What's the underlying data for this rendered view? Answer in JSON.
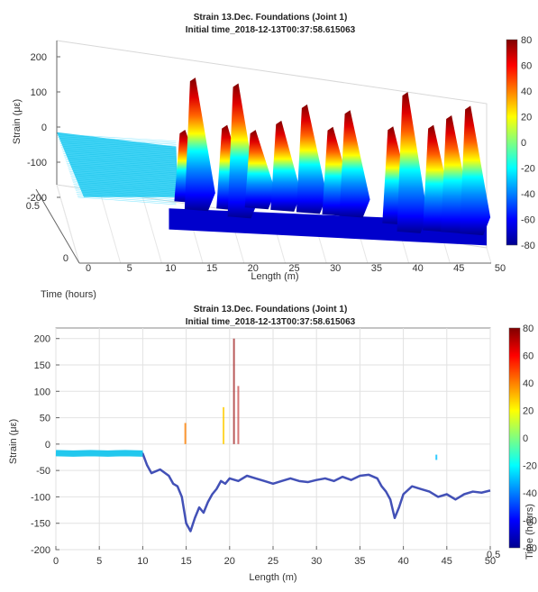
{
  "colors": {
    "colormap": [
      "#00008f",
      "#0000ff",
      "#0080ff",
      "#00ffff",
      "#80ff80",
      "#ffff00",
      "#ff8000",
      "#ff0000",
      "#800000"
    ],
    "baseline_trace": "#22c8ee",
    "noisy_trace": "#2233aa"
  },
  "chart_data": [
    {
      "type": "surface3d",
      "title": "Strain 13.Dec. Foundations (Joint 1)",
      "subtitle": "Initial time_2018-12-13T00:37:58.615063",
      "xlabel": "Length (m)",
      "ylabel": "Time (hours)",
      "zlabel": "Strain (με)",
      "xlim": [
        0,
        50
      ],
      "ylim": [
        0,
        0.5
      ],
      "zlim": [
        -250,
        200
      ],
      "x_ticks": [
        "0",
        "5",
        "10",
        "15",
        "20",
        "25",
        "30",
        "35",
        "40",
        "45",
        "50"
      ],
      "y_ticks": [
        "0",
        "0.5"
      ],
      "z_ticks": [
        "200",
        "100",
        "0",
        "-100",
        "-200"
      ],
      "colorbar": {
        "range": [
          -80,
          80
        ],
        "ticks": [
          "80",
          "60",
          "40",
          "20",
          "0",
          "-20",
          "-40",
          "-60",
          "-80"
        ]
      },
      "baseline": {
        "x_range": [
          0,
          12
        ],
        "strain": -25
      },
      "ridges": [
        {
          "x": 14.3,
          "strain_peak": 0,
          "strain_floor": -160
        },
        {
          "x": 15.5,
          "strain_peak": 150,
          "strain_floor": -180
        },
        {
          "x": 19.2,
          "strain_peak": 20,
          "strain_floor": -170
        },
        {
          "x": 20.5,
          "strain_peak": 140,
          "strain_floor": -190
        },
        {
          "x": 22.5,
          "strain_peak": 10,
          "strain_floor": -160
        },
        {
          "x": 25.5,
          "strain_peak": 40,
          "strain_floor": -160
        },
        {
          "x": 28.5,
          "strain_peak": 90,
          "strain_floor": -160
        },
        {
          "x": 31.5,
          "strain_peak": 30,
          "strain_floor": -160
        },
        {
          "x": 33.5,
          "strain_peak": 80,
          "strain_floor": -160
        },
        {
          "x": 38.5,
          "strain_peak": 40,
          "strain_floor": -170
        },
        {
          "x": 40.2,
          "strain_peak": 140,
          "strain_floor": -190
        },
        {
          "x": 43.2,
          "strain_peak": 50,
          "strain_floor": -180
        },
        {
          "x": 45.3,
          "strain_peak": 80,
          "strain_floor": -180
        },
        {
          "x": 47.5,
          "strain_peak": 110,
          "strain_floor": -180
        }
      ]
    },
    {
      "type": "line",
      "title": "Strain 13.Dec. Foundations (Joint 1)",
      "subtitle": "Initial time_2018-12-13T00:37:58.615063",
      "xlabel": "Length (m)",
      "ylabel": "Strain (με)",
      "overlay_label": "Time (hours)",
      "overlay_tick": "0.5",
      "xlim": [
        0,
        50
      ],
      "ylim": [
        -200,
        220
      ],
      "x_ticks": [
        "0",
        "5",
        "10",
        "15",
        "20",
        "25",
        "30",
        "35",
        "40",
        "45",
        "50"
      ],
      "y_ticks": [
        "200",
        "150",
        "100",
        "50",
        "0",
        "-50",
        "-100",
        "-150",
        "-200"
      ],
      "colorbar": {
        "range": [
          -80,
          80
        ],
        "ticks": [
          "80",
          "60",
          "40",
          "20",
          "0",
          "-20",
          "-40",
          "-60",
          "-80"
        ]
      },
      "series": [
        {
          "x": [
            0,
            2,
            4,
            6,
            8,
            10,
            10.5,
            11,
            12,
            13,
            13.5,
            14,
            14.5,
            15,
            15.5,
            16,
            16.5,
            17,
            17.5,
            18,
            18.5,
            19,
            19.5,
            20,
            21,
            22,
            23,
            24,
            25,
            26,
            27,
            28,
            29,
            30,
            31,
            32,
            33,
            34,
            35,
            36,
            37,
            37.5,
            38,
            38.5,
            39,
            39.5,
            40,
            41,
            42,
            43,
            44,
            45,
            46,
            47,
            48,
            49,
            50
          ],
          "values": [
            -17,
            -18,
            -17,
            -18,
            -17,
            -18,
            -40,
            -55,
            -48,
            -60,
            -75,
            -80,
            -100,
            -150,
            -165,
            -140,
            -120,
            -130,
            -110,
            -95,
            -85,
            -70,
            -75,
            -65,
            -70,
            -60,
            -65,
            -70,
            -75,
            -70,
            -65,
            -70,
            -72,
            -68,
            -65,
            -70,
            -62,
            -68,
            -60,
            -58,
            -65,
            -80,
            -90,
            -105,
            -140,
            -120,
            -95,
            -80,
            -85,
            -90,
            -100,
            -95,
            -105,
            -95,
            -90,
            -92,
            -88
          ]
        }
      ],
      "spikes": [
        {
          "x": 14.9,
          "strain": 40
        },
        {
          "x": 19.3,
          "strain": 70
        },
        {
          "x": 20.5,
          "strain": 200
        },
        {
          "x": 21.0,
          "strain": 110
        },
        {
          "x": 43.8,
          "strain": -20
        }
      ]
    }
  ]
}
